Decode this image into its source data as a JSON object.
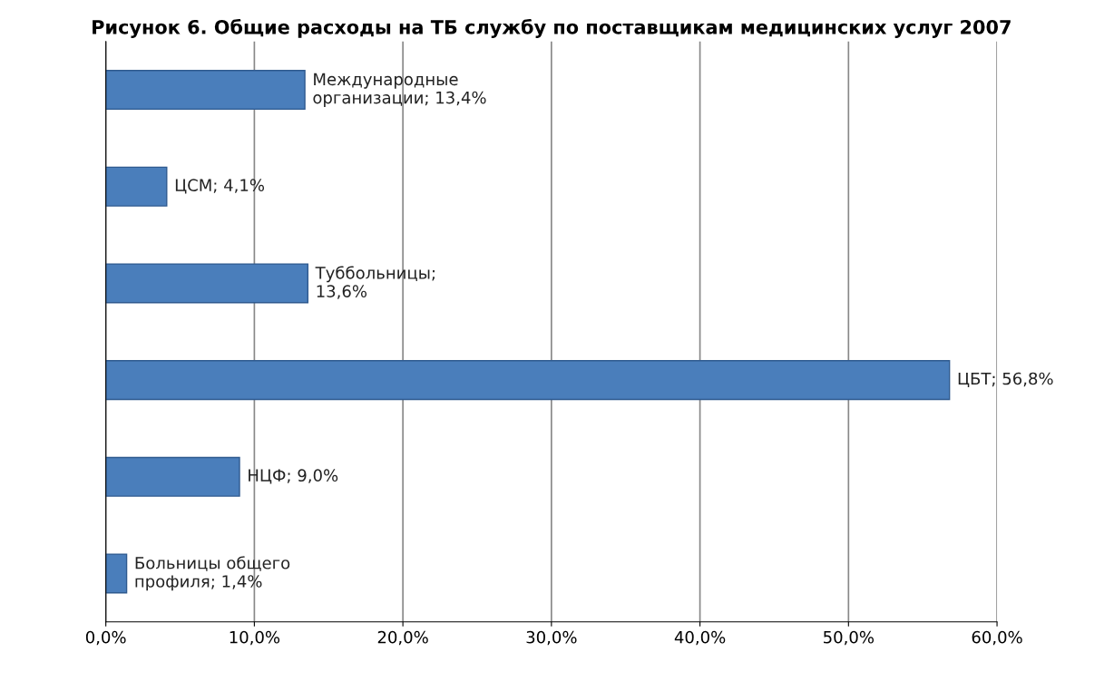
{
  "chart_data": {
    "type": "bar",
    "orientation": "horizontal",
    "title": "Рисунок 6. Общие расходы на ТБ службу по поставщикам медицинских услуг 2007",
    "categories": [
      null,
      null,
      null,
      null,
      null,
      null
    ],
    "values": [
      13.4,
      4.1,
      13.6,
      56.8,
      9.0,
      1.4
    ],
    "value_labels": [
      "Международные\nорганизации; 13,4%",
      "ЦСМ; 4,1%",
      "Туббольницы;\n13,6%",
      "ЦБТ; 56,8%",
      "НЦФ; 9,0%",
      "Больницы общего\nпрофиля; 1,4%"
    ],
    "color": "#4a7ebb",
    "xlim": [
      0,
      60
    ],
    "xticks": [
      {
        "value": 0,
        "label": "0,0%"
      },
      {
        "value": 10,
        "label": "10,0%"
      },
      {
        "value": 20,
        "label": "20,0%"
      },
      {
        "value": 30,
        "label": "30,0%"
      },
      {
        "value": 40,
        "label": "40,0%"
      },
      {
        "value": 50,
        "label": "50,0%"
      },
      {
        "value": 60,
        "label": "60,0%"
      }
    ],
    "grid": "x",
    "tick_labels": "x"
  }
}
